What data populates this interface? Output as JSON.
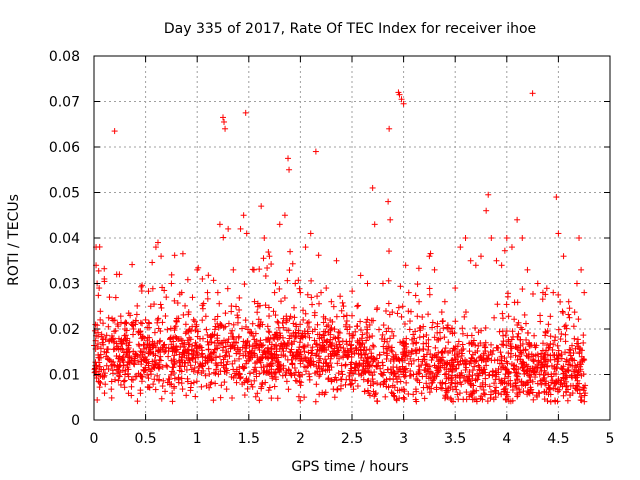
{
  "chart_data": {
    "type": "scatter",
    "title": "Day 335 of 2017, Rate Of TEC Index for receiver ihoe",
    "xlabel": "GPS time / hours",
    "ylabel": "ROTI / TECUs",
    "xlim": [
      0,
      5
    ],
    "ylim": [
      0,
      0.08
    ],
    "x_ticks": [
      0,
      0.5,
      1,
      1.5,
      2,
      2.5,
      3,
      3.5,
      4,
      4.5,
      5
    ],
    "x_tick_labels": [
      "0",
      "0.5",
      "1",
      "1.5",
      "2",
      "2.5",
      "3",
      "3.5",
      "4",
      "4.5",
      "5"
    ],
    "y_ticks": [
      0,
      0.01,
      0.02,
      0.03,
      0.04,
      0.05,
      0.06,
      0.07,
      0.08
    ],
    "y_tick_labels": [
      "0",
      "0.01",
      "0.02",
      "0.03",
      "0.04",
      "0.05",
      "0.06",
      "0.07",
      "0.08"
    ],
    "grid": true,
    "marker": "+",
    "marker_color": "#ff0000",
    "series": [
      {
        "name": "ROTI",
        "points": [
          [
            0.02,
            0.038
          ],
          [
            0.02,
            0.034
          ],
          [
            0.03,
            0.03
          ],
          [
            0.05,
            0.029
          ],
          [
            0.06,
            0.022
          ],
          [
            0.08,
            0.017
          ],
          [
            0.1,
            0.031
          ],
          [
            0.15,
            0.027
          ],
          [
            0.2,
            0.0635
          ],
          [
            0.22,
            0.032
          ],
          [
            0.3,
            0.02
          ],
          [
            0.35,
            0.023
          ],
          [
            0.4,
            0.021
          ],
          [
            0.5,
            0.022
          ],
          [
            0.55,
            0.025
          ],
          [
            0.6,
            0.038
          ],
          [
            0.62,
            0.039
          ],
          [
            0.65,
            0.036
          ],
          [
            0.7,
            0.027
          ],
          [
            0.75,
            0.03
          ],
          [
            0.85,
            0.028
          ],
          [
            1.0,
            0.033
          ],
          [
            1.05,
            0.031
          ],
          [
            1.1,
            0.028
          ],
          [
            1.2,
            0.028
          ],
          [
            1.22,
            0.043
          ],
          [
            1.25,
            0.0665
          ],
          [
            1.26,
            0.0655
          ],
          [
            1.27,
            0.064
          ],
          [
            1.3,
            0.042
          ],
          [
            1.35,
            0.033
          ],
          [
            1.42,
            0.042
          ],
          [
            1.45,
            0.045
          ],
          [
            1.47,
            0.0675
          ],
          [
            1.48,
            0.041
          ],
          [
            1.55,
            0.033
          ],
          [
            1.62,
            0.047
          ],
          [
            1.65,
            0.04
          ],
          [
            1.7,
            0.036
          ],
          [
            1.75,
            0.028
          ],
          [
            1.8,
            0.043
          ],
          [
            1.85,
            0.045
          ],
          [
            1.88,
            0.0575
          ],
          [
            1.89,
            0.055
          ],
          [
            1.9,
            0.037
          ],
          [
            1.95,
            0.03
          ],
          [
            2.0,
            0.028
          ],
          [
            2.05,
            0.038
          ],
          [
            2.1,
            0.041
          ],
          [
            2.15,
            0.059
          ],
          [
            2.2,
            0.028
          ],
          [
            2.25,
            0.029
          ],
          [
            2.3,
            0.026
          ],
          [
            2.35,
            0.035
          ],
          [
            2.4,
            0.024
          ],
          [
            2.45,
            0.023
          ],
          [
            2.55,
            0.025
          ],
          [
            2.65,
            0.03
          ],
          [
            2.7,
            0.051
          ],
          [
            2.72,
            0.043
          ],
          [
            2.8,
            0.03
          ],
          [
            2.85,
            0.048
          ],
          [
            2.86,
            0.064
          ],
          [
            2.87,
            0.044
          ],
          [
            2.95,
            0.072
          ],
          [
            2.96,
            0.0715
          ],
          [
            2.98,
            0.0705
          ],
          [
            3.0,
            0.0695
          ],
          [
            3.02,
            0.034
          ],
          [
            3.05,
            0.028
          ],
          [
            3.15,
            0.026
          ],
          [
            3.25,
            0.036
          ],
          [
            3.3,
            0.033
          ],
          [
            3.4,
            0.026
          ],
          [
            3.5,
            0.029
          ],
          [
            3.55,
            0.038
          ],
          [
            3.6,
            0.04
          ],
          [
            3.65,
            0.035
          ],
          [
            3.7,
            0.034
          ],
          [
            3.75,
            0.036
          ],
          [
            3.8,
            0.046
          ],
          [
            3.82,
            0.0495
          ],
          [
            3.85,
            0.04
          ],
          [
            3.9,
            0.035
          ],
          [
            3.95,
            0.034
          ],
          [
            4.0,
            0.04
          ],
          [
            4.05,
            0.038
          ],
          [
            4.1,
            0.044
          ],
          [
            4.15,
            0.04
          ],
          [
            4.2,
            0.033
          ],
          [
            4.25,
            0.0718
          ],
          [
            4.3,
            0.03
          ],
          [
            4.35,
            0.028
          ],
          [
            4.45,
            0.028
          ],
          [
            4.48,
            0.049
          ],
          [
            4.5,
            0.041
          ],
          [
            4.55,
            0.036
          ],
          [
            4.6,
            0.026
          ],
          [
            4.68,
            0.03
          ],
          [
            4.7,
            0.04
          ],
          [
            4.72,
            0.033
          ],
          [
            4.75,
            0.028
          ],
          [
            0.1,
            0.015
          ],
          [
            0.2,
            0.012
          ],
          [
            0.3,
            0.01
          ],
          [
            0.4,
            0.014
          ],
          [
            0.5,
            0.011
          ],
          [
            0.6,
            0.016
          ],
          [
            0.7,
            0.012
          ],
          [
            0.8,
            0.018
          ],
          [
            0.9,
            0.011
          ],
          [
            1.0,
            0.016
          ],
          [
            1.1,
            0.013
          ],
          [
            1.2,
            0.012
          ],
          [
            1.3,
            0.015
          ],
          [
            1.4,
            0.01
          ],
          [
            1.5,
            0.014
          ],
          [
            1.6,
            0.016
          ],
          [
            1.7,
            0.012
          ],
          [
            1.8,
            0.011
          ],
          [
            1.9,
            0.015
          ],
          [
            2.0,
            0.013
          ],
          [
            2.1,
            0.012
          ],
          [
            2.2,
            0.016
          ],
          [
            2.3,
            0.014
          ],
          [
            2.4,
            0.012
          ],
          [
            2.5,
            0.015
          ],
          [
            2.6,
            0.011
          ],
          [
            2.7,
            0.009
          ],
          [
            2.8,
            0.012
          ],
          [
            2.9,
            0.014
          ],
          [
            3.0,
            0.01
          ],
          [
            3.1,
            0.013
          ],
          [
            3.2,
            0.011
          ],
          [
            3.3,
            0.012
          ],
          [
            3.4,
            0.01
          ],
          [
            3.5,
            0.008
          ],
          [
            3.6,
            0.011
          ],
          [
            3.7,
            0.009
          ],
          [
            3.8,
            0.012
          ],
          [
            3.9,
            0.01
          ],
          [
            4.0,
            0.008
          ],
          [
            4.1,
            0.009
          ],
          [
            4.2,
            0.011
          ],
          [
            4.3,
            0.008
          ],
          [
            4.4,
            0.01
          ],
          [
            4.5,
            0.009
          ],
          [
            4.6,
            0.011
          ],
          [
            4.7,
            0.008
          ],
          [
            4.75,
            0.007
          ]
        ]
      }
    ]
  }
}
